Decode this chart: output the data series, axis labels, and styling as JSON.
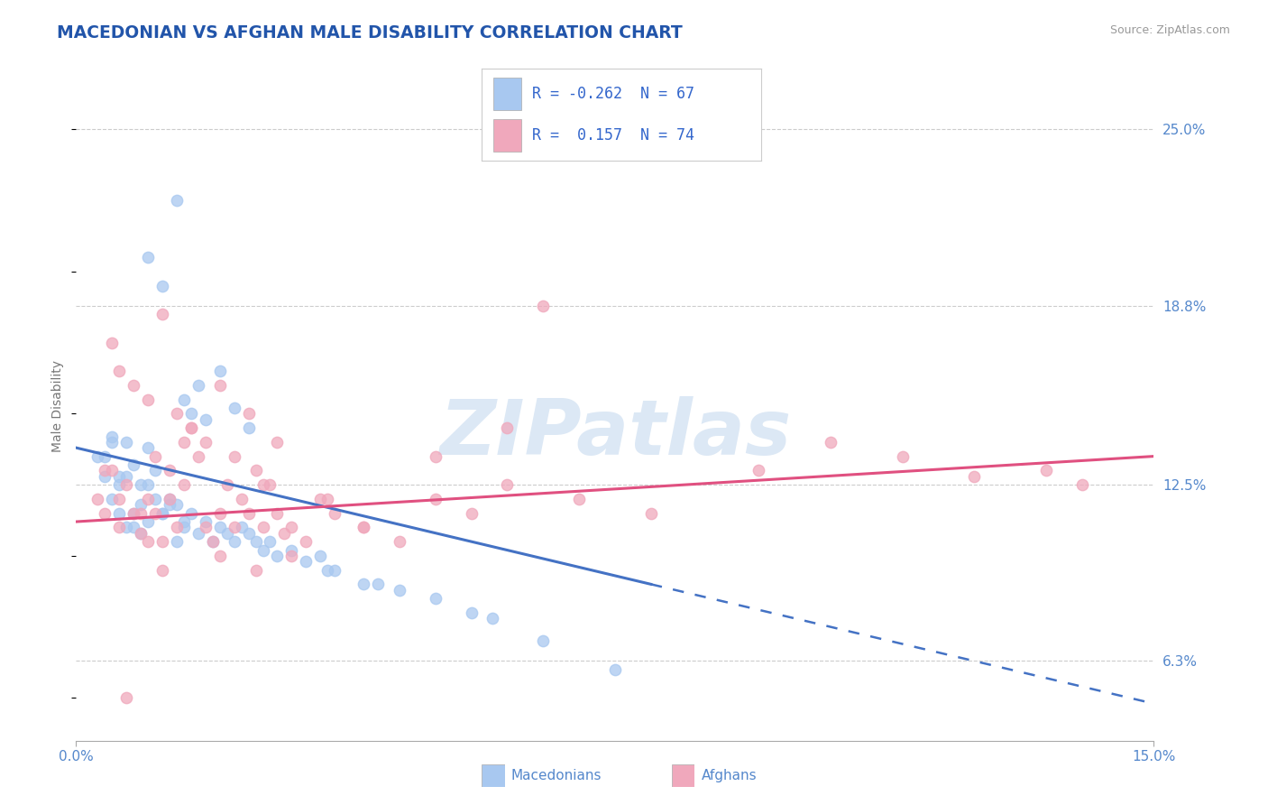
{
  "title": "MACEDONIAN VS AFGHAN MALE DISABILITY CORRELATION CHART",
  "source": "Source: ZipAtlas.com",
  "ylabel": "Male Disability",
  "x_lim": [
    0.0,
    15.0
  ],
  "y_lim": [
    3.5,
    27.0
  ],
  "macedonian_R": -0.262,
  "macedonian_N": 67,
  "afghan_R": 0.157,
  "afghan_N": 74,
  "macedonian_color": "#a8c8f0",
  "afghan_color": "#f0a8bc",
  "macedonian_line_color": "#4472c4",
  "afghan_line_color": "#e05080",
  "watermark_text": "ZIPatlas",
  "watermark_color": "#dce8f5",
  "background_color": "#ffffff",
  "grid_color": "#cccccc",
  "title_color": "#2255aa",
  "legend_text_color": "#3366cc",
  "legend_n_color": "#333333",
  "axis_label_color": "#5588cc",
  "y_ticks_right": [
    6.3,
    12.5,
    18.8,
    25.0
  ],
  "macedonian_x": [
    0.4,
    0.5,
    0.6,
    0.7,
    0.8,
    0.9,
    1.0,
    0.5,
    0.6,
    0.7,
    0.8,
    0.9,
    1.0,
    1.1,
    1.2,
    1.3,
    1.4,
    1.5,
    0.6,
    0.7,
    0.8,
    0.9,
    1.0,
    1.1,
    1.2,
    1.3,
    1.4,
    1.5,
    1.6,
    1.7,
    1.8,
    1.9,
    2.0,
    2.1,
    2.2,
    2.3,
    2.4,
    2.5,
    2.6,
    2.7,
    2.8,
    3.0,
    3.2,
    3.4,
    3.6,
    4.0,
    4.5,
    5.0,
    5.5,
    6.5,
    7.5,
    1.5,
    1.6,
    1.7,
    1.8,
    2.0,
    2.2,
    2.4,
    1.0,
    1.2,
    1.4,
    0.3,
    0.4,
    0.5,
    3.5,
    4.2,
    5.8
  ],
  "macedonian_y": [
    13.5,
    14.2,
    12.8,
    14.0,
    13.2,
    12.5,
    13.8,
    12.0,
    11.5,
    12.8,
    11.0,
    11.8,
    12.5,
    13.0,
    11.5,
    12.0,
    11.8,
    11.2,
    12.5,
    11.0,
    11.5,
    10.8,
    11.2,
    12.0,
    11.5,
    11.8,
    10.5,
    11.0,
    11.5,
    10.8,
    11.2,
    10.5,
    11.0,
    10.8,
    10.5,
    11.0,
    10.8,
    10.5,
    10.2,
    10.5,
    10.0,
    10.2,
    9.8,
    10.0,
    9.5,
    9.0,
    8.8,
    8.5,
    8.0,
    7.0,
    6.0,
    15.5,
    15.0,
    16.0,
    14.8,
    16.5,
    15.2,
    14.5,
    20.5,
    19.5,
    22.5,
    13.5,
    12.8,
    14.0,
    9.5,
    9.0,
    7.8
  ],
  "afghan_x": [
    0.3,
    0.4,
    0.5,
    0.6,
    0.7,
    0.8,
    0.9,
    1.0,
    1.1,
    1.2,
    1.3,
    1.4,
    1.5,
    1.6,
    1.7,
    1.8,
    1.9,
    2.0,
    2.1,
    2.2,
    2.3,
    2.4,
    2.5,
    2.6,
    2.7,
    2.8,
    2.9,
    3.0,
    3.2,
    3.4,
    3.6,
    4.0,
    4.5,
    5.0,
    5.5,
    6.0,
    7.0,
    8.0,
    9.5,
    10.5,
    11.5,
    12.5,
    13.5,
    14.0,
    0.5,
    0.6,
    0.8,
    1.0,
    1.2,
    1.4,
    1.6,
    1.8,
    2.0,
    2.2,
    2.4,
    2.6,
    2.8,
    0.4,
    0.6,
    0.9,
    1.1,
    1.3,
    1.5,
    3.5,
    5.0,
    6.0,
    1.0,
    1.2,
    2.0,
    2.5,
    3.0,
    4.0,
    6.5,
    0.7
  ],
  "afghan_y": [
    12.0,
    11.5,
    13.0,
    11.0,
    12.5,
    11.5,
    10.8,
    12.0,
    11.5,
    10.5,
    13.0,
    11.0,
    12.5,
    14.5,
    13.5,
    11.0,
    10.5,
    11.5,
    12.5,
    11.0,
    12.0,
    11.5,
    13.0,
    11.0,
    12.5,
    11.5,
    10.8,
    11.0,
    10.5,
    12.0,
    11.5,
    11.0,
    10.5,
    12.0,
    11.5,
    12.5,
    12.0,
    11.5,
    13.0,
    14.0,
    13.5,
    12.8,
    13.0,
    12.5,
    17.5,
    16.5,
    16.0,
    15.5,
    18.5,
    15.0,
    14.5,
    14.0,
    16.0,
    13.5,
    15.0,
    12.5,
    14.0,
    13.0,
    12.0,
    11.5,
    13.5,
    12.0,
    14.0,
    12.0,
    13.5,
    14.5,
    10.5,
    9.5,
    10.0,
    9.5,
    10.0,
    11.0,
    18.8,
    5.0
  ],
  "mac_trend_x0": 0.0,
  "mac_trend_y0": 13.8,
  "mac_trend_x1": 8.0,
  "mac_trend_y1": 9.0,
  "mac_dash_x0": 8.0,
  "mac_dash_y0": 9.0,
  "mac_dash_x1": 15.0,
  "mac_dash_y1": 4.8,
  "afg_trend_x0": 0.0,
  "afg_trend_y0": 11.2,
  "afg_trend_x1": 15.0,
  "afg_trend_y1": 13.5
}
